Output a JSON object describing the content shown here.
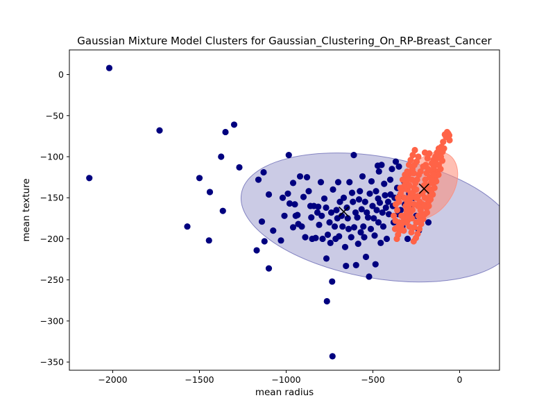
{
  "chart_data": {
    "type": "scatter",
    "title": "Gaussian Mixture Model Clusters for Gaussian_Clustering_On_RP-Breast_Cancer",
    "xlabel": "mean radius",
    "ylabel": "mean texture",
    "xlim": [
      -2250,
      230
    ],
    "ylim": [
      -360,
      30
    ],
    "xticks": [
      -2000,
      -1500,
      -1000,
      -500,
      0
    ],
    "yticks": [
      0,
      -50,
      -100,
      -150,
      -200,
      -250,
      -300,
      -350
    ],
    "grid": false,
    "legend": "none",
    "colors": {
      "cluster_navy": "#00007f",
      "cluster_coral": "#ff6347",
      "ellipse_navy": "#6a6ab5",
      "ellipse_coral": "#ff8a75",
      "centroid": "#000000"
    },
    "series": [
      {
        "color": "cluster_navy",
        "points": [
          [
            -2020,
            8
          ],
          [
            -2135,
            -126
          ],
          [
            -1730,
            -68
          ],
          [
            -1350,
            -70
          ],
          [
            -1300,
            -61
          ],
          [
            -1375,
            -100
          ],
          [
            -1270,
            -113
          ],
          [
            -1500,
            -126
          ],
          [
            -1440,
            -143
          ],
          [
            -1365,
            -166
          ],
          [
            -1570,
            -185
          ],
          [
            -1445,
            -202
          ],
          [
            -1170,
            -214
          ],
          [
            -1100,
            -236
          ],
          [
            -1160,
            -128
          ],
          [
            -1130,
            -119
          ],
          [
            -1100,
            -146
          ],
          [
            -1140,
            -179
          ],
          [
            -1075,
            -190
          ],
          [
            -1125,
            -203
          ],
          [
            -1030,
            -202
          ],
          [
            -1020,
            -150
          ],
          [
            -1010,
            -172
          ],
          [
            -985,
            -98
          ],
          [
            -990,
            -145
          ],
          [
            -980,
            -157
          ],
          [
            -960,
            -132
          ],
          [
            -960,
            -186
          ],
          [
            -950,
            -158
          ],
          [
            -945,
            -172
          ],
          [
            -935,
            -171
          ],
          [
            -930,
            -182
          ],
          [
            -920,
            -124
          ],
          [
            -910,
            -185
          ],
          [
            -900,
            -149
          ],
          [
            -890,
            -198
          ],
          [
            -880,
            -125
          ],
          [
            -870,
            -142
          ],
          [
            -860,
            -160
          ],
          [
            -855,
            -174
          ],
          [
            -850,
            -200
          ],
          [
            -840,
            -160
          ],
          [
            -830,
            -199
          ],
          [
            -820,
            -168
          ],
          [
            -815,
            -161
          ],
          [
            -810,
            -183
          ],
          [
            -800,
            -131
          ],
          [
            -795,
            -172
          ],
          [
            -790,
            -200
          ],
          [
            -780,
            -151
          ],
          [
            -770,
            -162
          ],
          [
            -768,
            -224
          ],
          [
            -765,
            -276
          ],
          [
            -760,
            -195
          ],
          [
            -750,
            -180
          ],
          [
            -745,
            -205
          ],
          [
            -740,
            -168
          ],
          [
            -735,
            -252
          ],
          [
            -733,
            -343
          ],
          [
            -730,
            -140
          ],
          [
            -720,
            -185
          ],
          [
            -715,
            -200
          ],
          [
            -710,
            -165
          ],
          [
            -705,
            -175
          ],
          [
            -700,
            -131
          ],
          [
            -695,
            -197
          ],
          [
            -690,
            -155
          ],
          [
            -680,
            -172
          ],
          [
            -675,
            -185
          ],
          [
            -668,
            -150
          ],
          [
            -660,
            -210
          ],
          [
            -655,
            -233
          ],
          [
            -650,
            -162
          ],
          [
            -645,
            -175
          ],
          [
            -640,
            -188
          ],
          [
            -635,
            -131
          ],
          [
            -625,
            -198
          ],
          [
            -620,
            -144
          ],
          [
            -615,
            -155
          ],
          [
            -610,
            -98
          ],
          [
            -608,
            -186
          ],
          [
            -600,
            -168
          ],
          [
            -597,
            -232
          ],
          [
            -590,
            -174
          ],
          [
            -585,
            -206
          ],
          [
            -580,
            -152
          ],
          [
            -575,
            -142
          ],
          [
            -570,
            -192
          ],
          [
            -565,
            -164
          ],
          [
            -560,
            -124
          ],
          [
            -555,
            -185
          ],
          [
            -550,
            -198
          ],
          [
            -545,
            -155
          ],
          [
            -540,
            -222
          ],
          [
            -535,
            -168
          ],
          [
            -528,
            -174
          ],
          [
            -522,
            -246
          ],
          [
            -518,
            -145
          ],
          [
            -512,
            -188
          ],
          [
            -508,
            -130
          ],
          [
            -502,
            -160
          ],
          [
            -495,
            -175
          ],
          [
            -490,
            -196
          ],
          [
            -485,
            -231
          ],
          [
            -482,
            -142
          ],
          [
            -478,
            -165
          ],
          [
            -472,
            -111
          ],
          [
            -470,
            -151
          ],
          [
            -468,
            -180
          ],
          [
            -465,
            -118
          ],
          [
            -460,
            -156
          ],
          [
            -455,
            -205
          ],
          [
            -450,
            -110
          ],
          [
            -445,
            -168
          ],
          [
            -440,
            -185
          ],
          [
            -435,
            -133
          ],
          [
            -430,
            -147
          ],
          [
            -425,
            -162
          ],
          [
            -420,
            -200
          ],
          [
            -412,
            -155
          ],
          [
            -408,
            -170
          ],
          [
            -400,
            -128
          ],
          [
            -398,
            -146
          ],
          [
            -390,
            -115
          ],
          [
            -385,
            -160
          ],
          [
            -380,
            -180
          ],
          [
            -375,
            -150
          ],
          [
            -368,
            -106
          ],
          [
            -360,
            -138
          ],
          [
            -355,
            -170
          ],
          [
            -350,
            -112
          ],
          [
            -345,
            -148
          ],
          [
            -340,
            -165
          ],
          [
            -330,
            -185
          ],
          [
            -320,
            -130
          ],
          [
            -315,
            -158
          ],
          [
            -300,
            -200
          ],
          [
            -290,
            -145
          ],
          [
            -280,
            -162
          ],
          [
            -265,
            -150
          ],
          [
            -250,
            -172
          ],
          [
            -235,
            -190
          ],
          [
            -180,
            -180
          ]
        ]
      },
      {
        "color": "cluster_coral",
        "points": [
          [
            -72,
            -70
          ],
          [
            -65,
            -72
          ],
          [
            -60,
            -74
          ],
          [
            -58,
            -80
          ],
          [
            -85,
            -73
          ],
          [
            -78,
            -76
          ],
          [
            -95,
            -82
          ],
          [
            -105,
            -88
          ],
          [
            -112,
            -92
          ],
          [
            -120,
            -90
          ],
          [
            -130,
            -95
          ],
          [
            -140,
            -100
          ],
          [
            -150,
            -104
          ],
          [
            -160,
            -108
          ],
          [
            -175,
            -96
          ],
          [
            -185,
            -102
          ],
          [
            -200,
            -95
          ],
          [
            -195,
            -110
          ],
          [
            -210,
            -112
          ],
          [
            -225,
            -118
          ],
          [
            -235,
            -122
          ],
          [
            -245,
            -128
          ],
          [
            -255,
            -132
          ],
          [
            -262,
            -138
          ],
          [
            -270,
            -144
          ],
          [
            -280,
            -150
          ],
          [
            -288,
            -156
          ],
          [
            -295,
            -161
          ],
          [
            -305,
            -166
          ],
          [
            -312,
            -171
          ],
          [
            -320,
            -176
          ],
          [
            -330,
            -181
          ],
          [
            -338,
            -185
          ],
          [
            -345,
            -190
          ],
          [
            -355,
            -195
          ],
          [
            -362,
            -200
          ],
          [
            -370,
            -178
          ],
          [
            -360,
            -165
          ],
          [
            -350,
            -155
          ],
          [
            -340,
            -145
          ],
          [
            -330,
            -140
          ],
          [
            -318,
            -135
          ],
          [
            -305,
            -130
          ],
          [
            -298,
            -125
          ],
          [
            -285,
            -120
          ],
          [
            -272,
            -115
          ],
          [
            -260,
            -110
          ],
          [
            -248,
            -106
          ],
          [
            -238,
            -100
          ],
          [
            -120,
            -110
          ],
          [
            -130,
            -118
          ],
          [
            -140,
            -125
          ],
          [
            -150,
            -132
          ],
          [
            -160,
            -140
          ],
          [
            -170,
            -148
          ],
          [
            -180,
            -155
          ],
          [
            -190,
            -162
          ],
          [
            -200,
            -170
          ],
          [
            -210,
            -176
          ],
          [
            -222,
            -182
          ],
          [
            -232,
            -188
          ],
          [
            -242,
            -194
          ],
          [
            -252,
            -199
          ],
          [
            -265,
            -203
          ],
          [
            -278,
            -192
          ],
          [
            -290,
            -185
          ],
          [
            -300,
            -178
          ],
          [
            -310,
            -160
          ],
          [
            -320,
            -150
          ],
          [
            -300,
            -140
          ],
          [
            -290,
            -135
          ],
          [
            -275,
            -128
          ],
          [
            -265,
            -120
          ],
          [
            -250,
            -140
          ],
          [
            -240,
            -148
          ],
          [
            -230,
            -155
          ],
          [
            -220,
            -160
          ],
          [
            -215,
            -145
          ],
          [
            -205,
            -135
          ],
          [
            -198,
            -128
          ],
          [
            -190,
            -120
          ],
          [
            -182,
            -115
          ],
          [
            -172,
            -125
          ],
          [
            -165,
            -132
          ],
          [
            -158,
            -118
          ],
          [
            -148,
            -112
          ],
          [
            -138,
            -108
          ],
          [
            -128,
            -102
          ],
          [
            -118,
            -98
          ],
          [
            -108,
            -100
          ],
          [
            -98,
            -94
          ],
          [
            -90,
            -90
          ],
          [
            -100,
            -105
          ],
          [
            -110,
            -115
          ],
          [
            -122,
            -122
          ],
          [
            -135,
            -130
          ],
          [
            -145,
            -138
          ],
          [
            -155,
            -146
          ],
          [
            -168,
            -152
          ],
          [
            -178,
            -160
          ],
          [
            -188,
            -168
          ],
          [
            -200,
            -150
          ],
          [
            -212,
            -158
          ],
          [
            -225,
            -165
          ],
          [
            -238,
            -172
          ],
          [
            -250,
            -180
          ],
          [
            -262,
            -186
          ],
          [
            -275,
            -175
          ],
          [
            -285,
            -168
          ],
          [
            -295,
            -172
          ],
          [
            -308,
            -180
          ],
          [
            -322,
            -190
          ],
          [
            -335,
            -172
          ],
          [
            -348,
            -180
          ],
          [
            -358,
            -186
          ],
          [
            -372,
            -188
          ],
          [
            -380,
            -172
          ],
          [
            -368,
            -158
          ],
          [
            -355,
            -150
          ],
          [
            -342,
            -138
          ],
          [
            -328,
            -128
          ],
          [
            -315,
            -122
          ],
          [
            -302,
            -118
          ],
          [
            -292,
            -110
          ],
          [
            -282,
            -104
          ],
          [
            -270,
            -98
          ],
          [
            -258,
            -92
          ],
          [
            -195,
            -140
          ],
          [
            -185,
            -135
          ],
          [
            -175,
            -140
          ],
          [
            -168,
            -145
          ],
          [
            -160,
            -128
          ],
          [
            -150,
            -122
          ],
          [
            -205,
            -160
          ],
          [
            -215,
            -170
          ],
          [
            -228,
            -178
          ],
          [
            -240,
            -160
          ],
          [
            -252,
            -150
          ],
          [
            -262,
            -158
          ],
          [
            -272,
            -165
          ],
          [
            -282,
            -145
          ],
          [
            -292,
            -150
          ],
          [
            -302,
            -155
          ]
        ]
      }
    ],
    "ellipses": [
      {
        "color": "ellipse_navy",
        "opacity": 0.35,
        "cx": -470,
        "cy": -174,
        "rx_units": 800,
        "ry_units": 74,
        "angle": -10
      },
      {
        "color": "ellipse_coral",
        "opacity": 0.55,
        "cx": -175,
        "cy": -135,
        "rx_units": 210,
        "ry_units": 30,
        "angle": 58
      }
    ],
    "centroids": [
      [
        -668,
        -167
      ],
      [
        -205,
        -139
      ]
    ]
  }
}
